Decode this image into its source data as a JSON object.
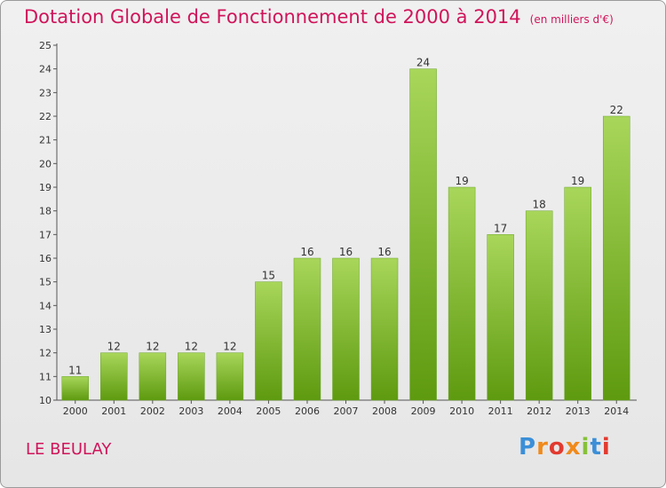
{
  "header": {
    "title": "Dotation Globale de Fonctionnement de 2000 à 2014",
    "subtitle": "(en milliers d'€)"
  },
  "footer": {
    "commune": "LE BEULAY",
    "logo_text": "Proxiti"
  },
  "colors": {
    "title": "#d0145a",
    "bar_top": "#a8d65a",
    "bar_bottom": "#5e9a10"
  },
  "chart_data": {
    "type": "bar",
    "categories": [
      "2000",
      "2001",
      "2002",
      "2003",
      "2004",
      "2005",
      "2006",
      "2007",
      "2008",
      "2009",
      "2010",
      "2011",
      "2012",
      "2013",
      "2014"
    ],
    "values": [
      11,
      12,
      12,
      12,
      12,
      15,
      16,
      16,
      16,
      24,
      19,
      17,
      18,
      19,
      22
    ],
    "title": "Dotation Globale de Fonctionnement de 2000 à 2014",
    "subtitle": "(en milliers d'€)",
    "xlabel": "",
    "ylabel": "",
    "ylim": [
      10,
      25
    ],
    "yticks": [
      10,
      11,
      12,
      13,
      14,
      15,
      16,
      17,
      18,
      19,
      20,
      21,
      22,
      23,
      24,
      25
    ],
    "grid": false,
    "legend": "none"
  }
}
